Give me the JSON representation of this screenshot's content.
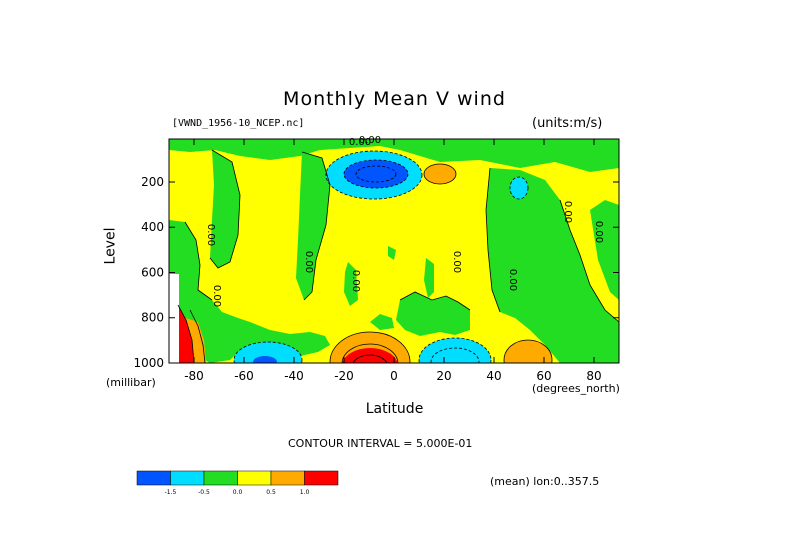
{
  "chart_data": {
    "type": "heatmap",
    "title": "Monthly Mean V wind",
    "subtitle_left": "[VWND_1956-10_NCEP.nc]",
    "subtitle_right": "(units:m/s)",
    "xlabel": "Latitude",
    "xunits": "(degrees_north)",
    "ylabel": "Level",
    "yunits": "(millibar)",
    "xlim": [
      -90,
      90
    ],
    "ylim": [
      1000,
      10
    ],
    "x_ticks": [
      -80,
      -60,
      -40,
      -20,
      0,
      20,
      40,
      60,
      80
    ],
    "y_ticks": [
      200,
      400,
      600,
      800,
      1000
    ],
    "contour_labels": [
      "0.00",
      "0.00",
      "0.00",
      "0.00",
      "0.00",
      "0.00",
      "0.00",
      "0.00",
      "0.00",
      "0.00"
    ],
    "contour_interval": "CONTOUR INTERVAL = 5.000E-01",
    "mean_note": "(mean) lon:0..357.5",
    "colorbar": {
      "colors": [
        "#0055ff",
        "#00ddff",
        "#22dd22",
        "#ffff00",
        "#ffaa00",
        "#ff0000"
      ],
      "labels": [
        "-1.5",
        "-0.5",
        "0.0",
        "0.5",
        "1.0"
      ]
    },
    "features": [
      {
        "kind": "min",
        "lat": -12,
        "level": 170,
        "value": -2.0
      },
      {
        "kind": "min",
        "lat": 50,
        "level": 200,
        "value": -0.7
      },
      {
        "kind": "max",
        "lat": 18,
        "level": 150,
        "value": 0.8
      },
      {
        "kind": "max",
        "lat": -10,
        "level": 970,
        "value": 2.0
      },
      {
        "kind": "min",
        "lat": -50,
        "level": 980,
        "value": -1.2
      },
      {
        "kind": "min",
        "lat": 22,
        "level": 980,
        "value": -1.2
      },
      {
        "kind": "max",
        "lat": 52,
        "level": 970,
        "value": 1.2
      }
    ]
  }
}
